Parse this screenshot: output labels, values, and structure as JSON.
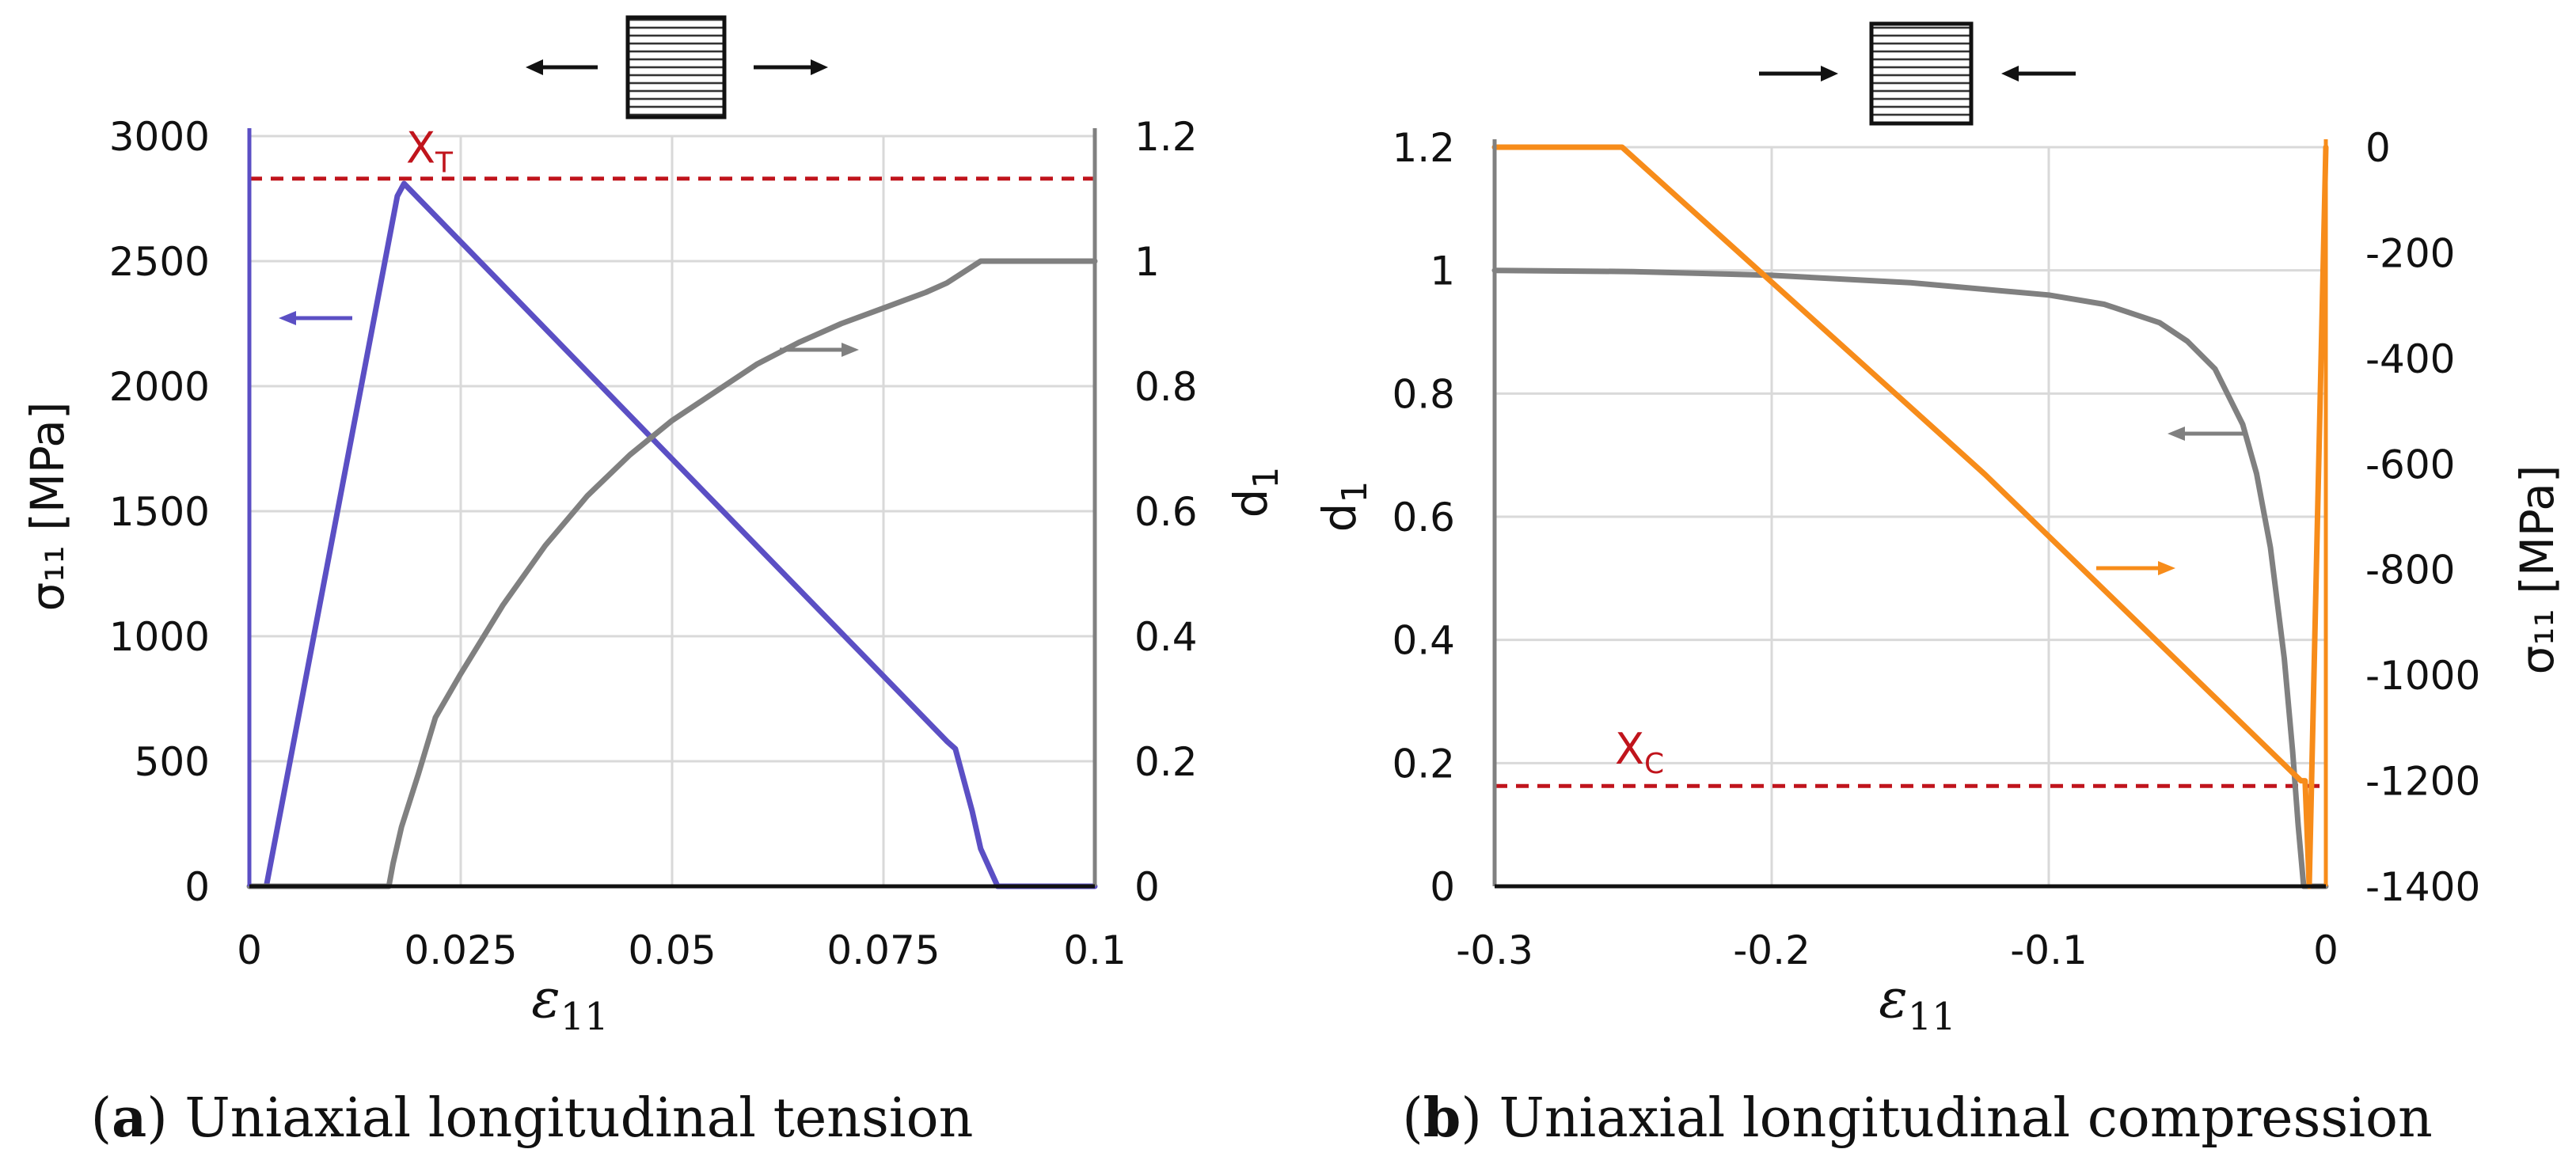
{
  "colors": {
    "stress_a": "#5b4fc4",
    "damage": "#808080",
    "stress_b": "#f78c1a",
    "strength": "#c0141c",
    "grid": "#d9d9d9",
    "arrow": "#111111"
  },
  "chart_data": [
    {
      "id": "a",
      "type": "line",
      "caption_letter": "a",
      "caption_text": ") Uniaxial longitudinal tension",
      "x_label_main": "ε",
      "x_label_sub": "11",
      "y_left_label": "σ₁₁ [MPa]",
      "y_right_label_main": "d",
      "y_right_label_sub": "1",
      "xlim": [
        0,
        0.1
      ],
      "y_left_lim": [
        0,
        3000
      ],
      "y_right_lim": [
        0,
        1.2
      ],
      "x_ticks": [
        0,
        0.025,
        0.05,
        0.075,
        0.1
      ],
      "x_tick_labels": [
        "0",
        "0.025",
        "0.05",
        "0.075",
        "0.1"
      ],
      "y_left_ticks": [
        0,
        500,
        1000,
        1500,
        2000,
        2500,
        3000
      ],
      "y_left_tick_labels": [
        "0",
        "500",
        "1000",
        "1500",
        "2000",
        "2500",
        "3000"
      ],
      "y_right_ticks": [
        0,
        0.2,
        0.4,
        0.6,
        0.8,
        1,
        1.2
      ],
      "y_right_tick_labels": [
        "0",
        "0.2",
        "0.4",
        "0.6",
        "0.8",
        "1",
        "1.2"
      ],
      "strength_line": {
        "name": "X",
        "sub": "T",
        "value": 2830
      },
      "series": [
        {
          "name": "σ11",
          "axis": "left",
          "x": [
            0.002,
            0.0175,
            0.0183,
            0.0825,
            0.0835,
            0.0855,
            0.0865,
            0.0885,
            0.1
          ],
          "y": [
            0,
            2760,
            2810,
            580,
            550,
            300,
            150,
            0,
            0
          ]
        },
        {
          "name": "d1",
          "axis": "right",
          "x": [
            0,
            0.0165,
            0.017,
            0.018,
            0.02,
            0.022,
            0.025,
            0.03,
            0.035,
            0.04,
            0.045,
            0.05,
            0.055,
            0.06,
            0.065,
            0.07,
            0.075,
            0.08,
            0.0825,
            0.0865,
            0.1
          ],
          "y": [
            0,
            0,
            0.037,
            0.095,
            0.18,
            0.27,
            0.34,
            0.45,
            0.545,
            0.625,
            0.69,
            0.745,
            0.79,
            0.835,
            0.87,
            0.9,
            0.925,
            0.95,
            0.965,
            1.0,
            1.0
          ]
        }
      ],
      "specimen_arrows": "outward"
    },
    {
      "id": "b",
      "type": "line",
      "caption_letter": "b",
      "caption_text": ") Uniaxial longitudinal compression",
      "x_label_main": "ε",
      "x_label_sub": "11",
      "y_left_label_main": "d",
      "y_left_label_sub": "1",
      "y_right_label": "σ₁₁ [MPa]",
      "xlim": [
        -0.3,
        0
      ],
      "y_left_lim": [
        0,
        1.2
      ],
      "y_right_lim": [
        -1400,
        0
      ],
      "x_ticks": [
        -0.3,
        -0.2,
        -0.1,
        0
      ],
      "x_tick_labels": [
        "-0.3",
        "-0.2",
        "-0.1",
        "0"
      ],
      "y_left_ticks": [
        0,
        0.2,
        0.4,
        0.6,
        0.8,
        1,
        1.2
      ],
      "y_left_tick_labels": [
        "0",
        "0.2",
        "0.4",
        "0.6",
        "0.8",
        "1",
        "1.2"
      ],
      "y_right_ticks": [
        -1400,
        -1200,
        -1000,
        -800,
        -600,
        -400,
        -200,
        0
      ],
      "y_right_tick_labels": [
        "-1400",
        "-1200",
        "-1000",
        "-800",
        "-600",
        "-400",
        "-200",
        "0"
      ],
      "strength_line": {
        "name": "X",
        "sub": "C",
        "value": -1210
      },
      "series": [
        {
          "name": "d1",
          "axis": "left",
          "x": [
            -0.3,
            -0.25,
            -0.2,
            -0.15,
            -0.1,
            -0.08,
            -0.06,
            -0.05,
            -0.04,
            -0.03,
            -0.025,
            -0.02,
            -0.015,
            -0.012,
            -0.01,
            -0.008,
            -0.006,
            0
          ],
          "y": [
            1.0,
            0.998,
            0.992,
            0.98,
            0.96,
            0.945,
            0.915,
            0.885,
            0.84,
            0.75,
            0.67,
            0.55,
            0.37,
            0.22,
            0.1,
            0.0,
            0.0,
            0.0
          ]
        },
        {
          "name": "σ11",
          "axis": "right",
          "x": [
            -0.3,
            -0.254,
            -0.123,
            -0.009,
            -0.0075,
            -0.006,
            0
          ],
          "y": [
            0,
            0,
            -620,
            -1200,
            -1200,
            -1400,
            0
          ]
        }
      ],
      "specimen_arrows": "inward"
    }
  ]
}
